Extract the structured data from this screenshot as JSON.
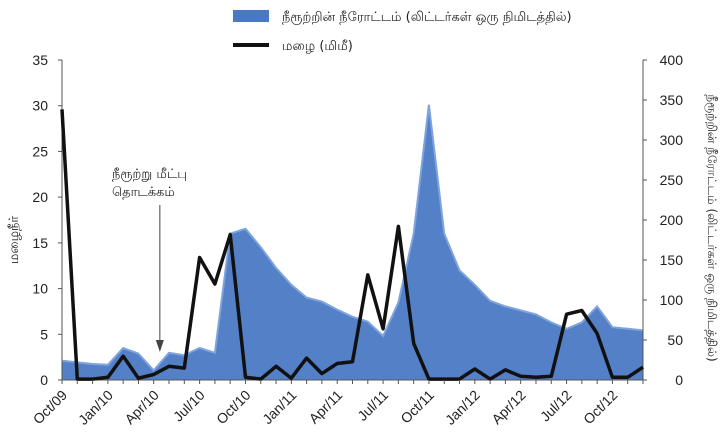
{
  "chart_data": {
    "type": "area+line",
    "legend": {
      "flow_label": "நீரூற்றின் நீரோட்டம் (லிட்டர்கள் ஒரு நிமிடத்தில்)",
      "rain_label": "மழை (மிமீ)",
      "placement": "top"
    },
    "left_axis": {
      "label": "மழைநீர்",
      "ylim": [
        0,
        35
      ],
      "ticks": [
        0,
        5,
        10,
        15,
        20,
        25,
        30,
        35
      ]
    },
    "right_axis": {
      "label": "நீரூற்றின் நீரோட்டம் (லிட்டர்கள் ஒரு நிமிடத்தில்)",
      "ylim": [
        0,
        400
      ],
      "ticks": [
        0,
        50,
        100,
        150,
        200,
        250,
        300,
        350,
        400
      ]
    },
    "x_tick_labels": [
      "Oct/09",
      "Jan/10",
      "Apr/10",
      "Jul/10",
      "Oct/10",
      "Jan/11",
      "Apr/11",
      "Jul/11",
      "Oct/11",
      "Jan/12",
      "Apr/12",
      "Jul/12",
      "Oct/12"
    ],
    "x_tick_index": [
      0,
      3,
      6,
      9,
      12,
      15,
      18,
      21,
      24,
      27,
      30,
      33,
      36
    ],
    "n_points": 39,
    "annotation": {
      "lines": [
        "நீரூற்று மீட்பு",
        "தொடக்கம்"
      ],
      "index": 6.4
    },
    "series": [
      {
        "name": "நீரூற்றின் நீரோட்டம் (லிட்டர்கள் ஒரு நிமிடத்தில்)",
        "axis": "right",
        "style": "area",
        "color": "#4a79c4",
        "values": [
          24,
          22,
          20,
          19,
          40,
          33,
          12,
          34,
          31,
          40,
          34,
          183,
          189,
          166,
          140,
          119,
          103,
          98,
          88,
          79,
          73,
          55,
          97,
          183,
          344,
          183,
          137,
          119,
          99,
          92,
          87,
          82,
          72,
          64,
          72,
          92,
          66,
          64,
          62
        ]
      },
      {
        "name": "மழை (மிமீ)",
        "axis": "left",
        "style": "line",
        "color": "#111111",
        "values": [
          29.6,
          0.1,
          0.1,
          0.3,
          2.6,
          0.2,
          0.6,
          1.5,
          1.3,
          13.4,
          10.5,
          15.9,
          0.3,
          0.1,
          1.5,
          0.2,
          2.4,
          0.7,
          1.8,
          2.0,
          11.5,
          5.6,
          16.8,
          4.0,
          0.1,
          0.1,
          0.1,
          1.2,
          0.1,
          1.1,
          0.4,
          0.3,
          0.4,
          7.2,
          7.6,
          5.1,
          0.3,
          0.3,
          1.4
        ]
      }
    ],
    "grid": false
  }
}
